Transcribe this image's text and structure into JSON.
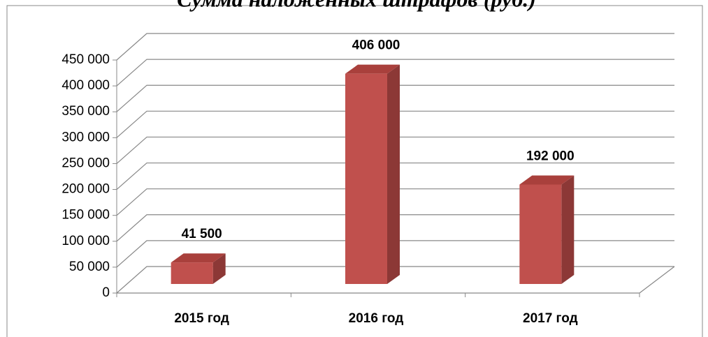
{
  "chart_data": {
    "type": "bar3d",
    "title": "Сумма наложенных штрафов (руб.)",
    "categories": [
      "2015 год",
      "2016 год",
      "2017 год"
    ],
    "values": [
      41500,
      406000,
      192000
    ],
    "value_labels": [
      "41 500",
      "406 000",
      "192 000"
    ],
    "color": "#c0504d",
    "ylim": [
      0,
      450000
    ],
    "yticks": [
      0,
      {
        "value": 50000,
        "label": "50 000"
      },
      {
        "value": 100000,
        "label": "100 000"
      },
      {
        "value": 150000,
        "label": "150 000"
      },
      {
        "value": 200000,
        "label": "200 000"
      },
      {
        "value": 250000,
        "label": "250 000"
      },
      {
        "value": 300000,
        "label": "300 000"
      },
      {
        "value": 350000,
        "label": "350 000"
      },
      {
        "value": 400000,
        "label": "400 000"
      },
      {
        "value": 450000,
        "label": "450 000"
      }
    ],
    "grid": true
  }
}
